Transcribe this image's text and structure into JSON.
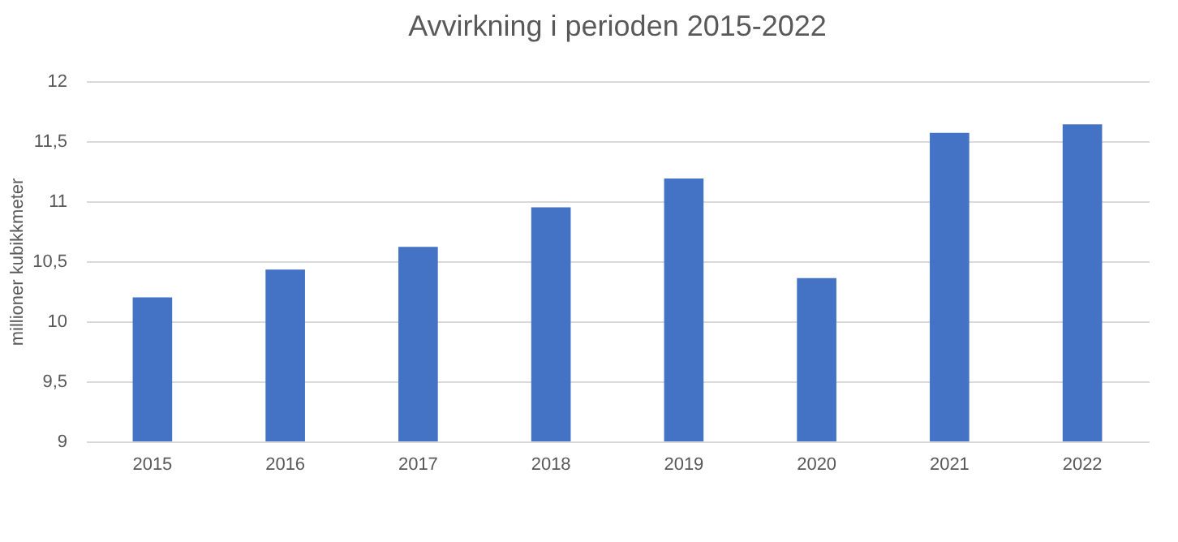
{
  "chart_data": {
    "type": "bar",
    "title": "Avvirkning i perioden 2015-2022",
    "ylabel": "millioner kubikkmeter",
    "categories": [
      "2015",
      "2016",
      "2017",
      "2018",
      "2019",
      "2020",
      "2021",
      "2022"
    ],
    "values": [
      10.2,
      10.43,
      10.62,
      10.95,
      11.19,
      10.36,
      11.57,
      11.64
    ],
    "color": "#4472c4",
    "ylim": [
      9,
      12
    ],
    "yticks": [
      9,
      {
        "value": 9.5,
        "label": "9,5"
      },
      10,
      {
        "value": 10.5,
        "label": "10,5"
      },
      11,
      {
        "value": 11.5,
        "label": "11,5"
      },
      12
    ],
    "grid": "y"
  }
}
